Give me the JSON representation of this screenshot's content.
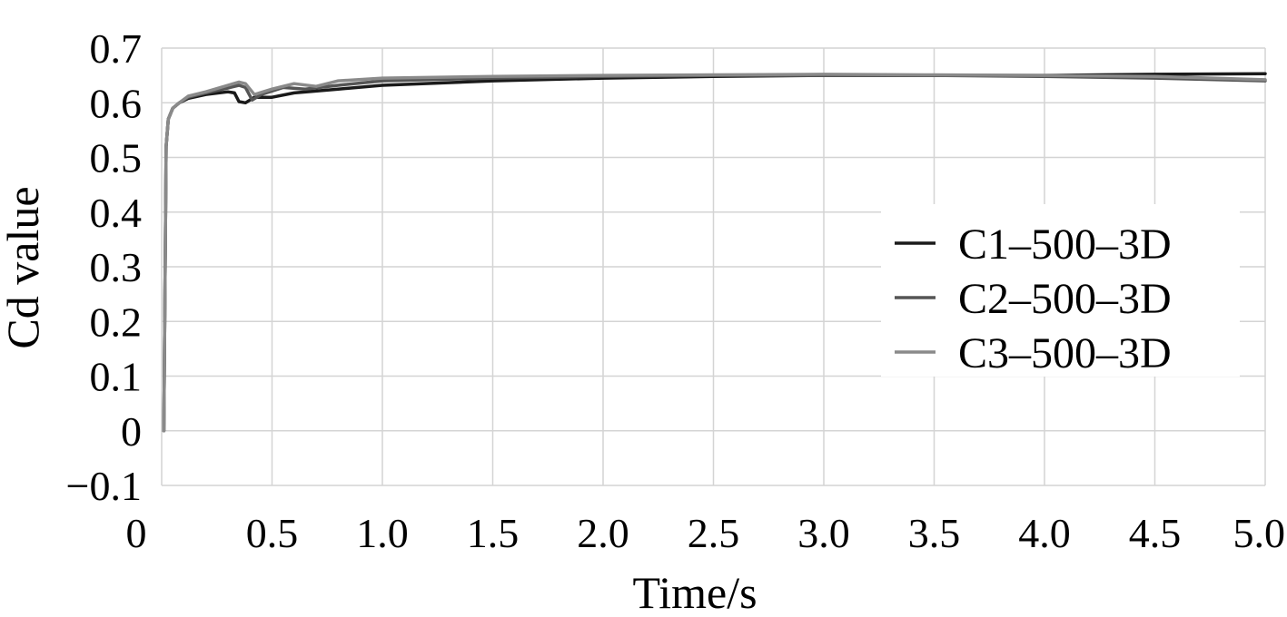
{
  "chart_data": {
    "type": "line",
    "title": "",
    "xlabel": "Time/s",
    "ylabel": "Cd value",
    "xlim": [
      0,
      5.0
    ],
    "ylim": [
      -0.1,
      0.7
    ],
    "x_ticks": [
      0,
      0.5,
      1.0,
      1.5,
      2.0,
      2.5,
      3.0,
      3.5,
      4.0,
      4.5,
      5.0
    ],
    "x_tick_labels": [
      "0",
      "0.5",
      "1.0",
      "1.5",
      "2.0",
      "2.5",
      "3.0",
      "3.5",
      "4.0",
      "4.5",
      "5.0"
    ],
    "y_ticks": [
      -0.1,
      0,
      0.1,
      0.2,
      0.3,
      0.4,
      0.5,
      0.6,
      0.7
    ],
    "y_tick_labels": [
      "−0.1",
      "0",
      "0.1",
      "0.2",
      "0.3",
      "0.4",
      "0.5",
      "0.6",
      "0.7"
    ],
    "grid": true,
    "legend_position": "right",
    "series": [
      {
        "name": "C1–500–3D",
        "color": "#1a1a1a",
        "x": [
          0.01,
          0.02,
          0.03,
          0.05,
          0.08,
          0.12,
          0.2,
          0.3,
          0.33,
          0.35,
          0.38,
          0.42,
          0.5,
          0.6,
          0.8,
          1.0,
          1.5,
          2.0,
          2.5,
          3.0,
          3.5,
          4.0,
          4.5,
          5.0
        ],
        "y": [
          0.0,
          0.52,
          0.57,
          0.59,
          0.6,
          0.608,
          0.615,
          0.62,
          0.618,
          0.602,
          0.6,
          0.61,
          0.61,
          0.618,
          0.625,
          0.632,
          0.64,
          0.645,
          0.648,
          0.65,
          0.65,
          0.65,
          0.652,
          0.653
        ]
      },
      {
        "name": "C2–500–3D",
        "color": "#555555",
        "x": [
          0.01,
          0.02,
          0.03,
          0.05,
          0.08,
          0.12,
          0.2,
          0.3,
          0.35,
          0.38,
          0.41,
          0.45,
          0.55,
          0.65,
          0.8,
          1.0,
          1.5,
          2.0,
          2.5,
          3.0,
          3.5,
          4.0,
          4.5,
          5.0
        ],
        "y": [
          0.0,
          0.52,
          0.57,
          0.59,
          0.6,
          0.61,
          0.618,
          0.627,
          0.632,
          0.628,
          0.605,
          0.615,
          0.628,
          0.625,
          0.632,
          0.64,
          0.645,
          0.648,
          0.65,
          0.65,
          0.65,
          0.648,
          0.645,
          0.64
        ]
      },
      {
        "name": "C3–500–3D",
        "color": "#8a8a8a",
        "x": [
          0.01,
          0.02,
          0.03,
          0.05,
          0.08,
          0.12,
          0.2,
          0.3,
          0.35,
          0.38,
          0.42,
          0.5,
          0.6,
          0.7,
          0.8,
          1.0,
          1.5,
          2.0,
          2.5,
          3.0,
          3.5,
          4.0,
          4.5,
          5.0
        ],
        "y": [
          0.0,
          0.52,
          0.57,
          0.59,
          0.6,
          0.612,
          0.62,
          0.632,
          0.638,
          0.635,
          0.615,
          0.625,
          0.635,
          0.63,
          0.64,
          0.645,
          0.648,
          0.65,
          0.651,
          0.652,
          0.651,
          0.65,
          0.648,
          0.642
        ]
      }
    ]
  }
}
